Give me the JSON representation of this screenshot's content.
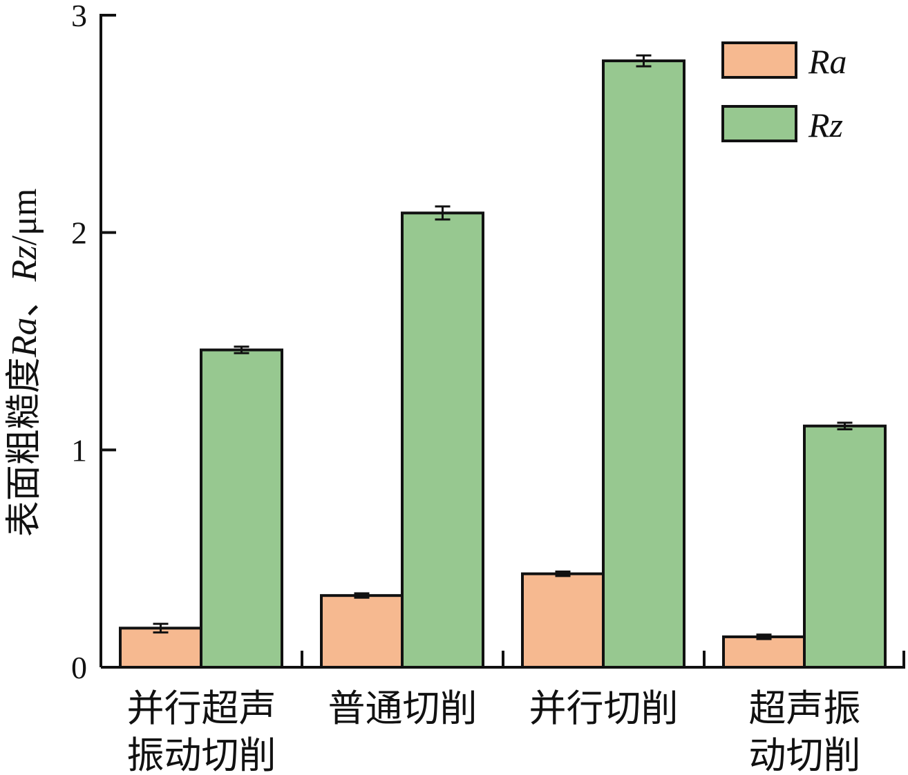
{
  "chart_data": {
    "type": "bar",
    "categories": [
      [
        "并行超声",
        "振动切削"
      ],
      [
        "普通切削"
      ],
      [
        "并行切削"
      ],
      [
        "超声振",
        "动切削"
      ]
    ],
    "series": [
      {
        "name": "Ra",
        "color": "#f6b990",
        "values": [
          0.18,
          0.33,
          0.43,
          0.14
        ],
        "errors": [
          0.02,
          0.01,
          0.01,
          0.01
        ]
      },
      {
        "name": "Rz",
        "color": "#97c890",
        "values": [
          1.46,
          2.09,
          2.79,
          1.11
        ],
        "errors": [
          0.015,
          0.03,
          0.025,
          0.015
        ]
      }
    ],
    "ylabel": "表面粗糙度Ra、Rz/μm",
    "ylabel_parts": [
      "表面粗糙度",
      "Ra",
      "、",
      "Rz",
      "/μm"
    ],
    "ylim": [
      0,
      3
    ],
    "yticks": [
      "0",
      "1",
      "2",
      "3"
    ],
    "legend_position": "top-right"
  }
}
